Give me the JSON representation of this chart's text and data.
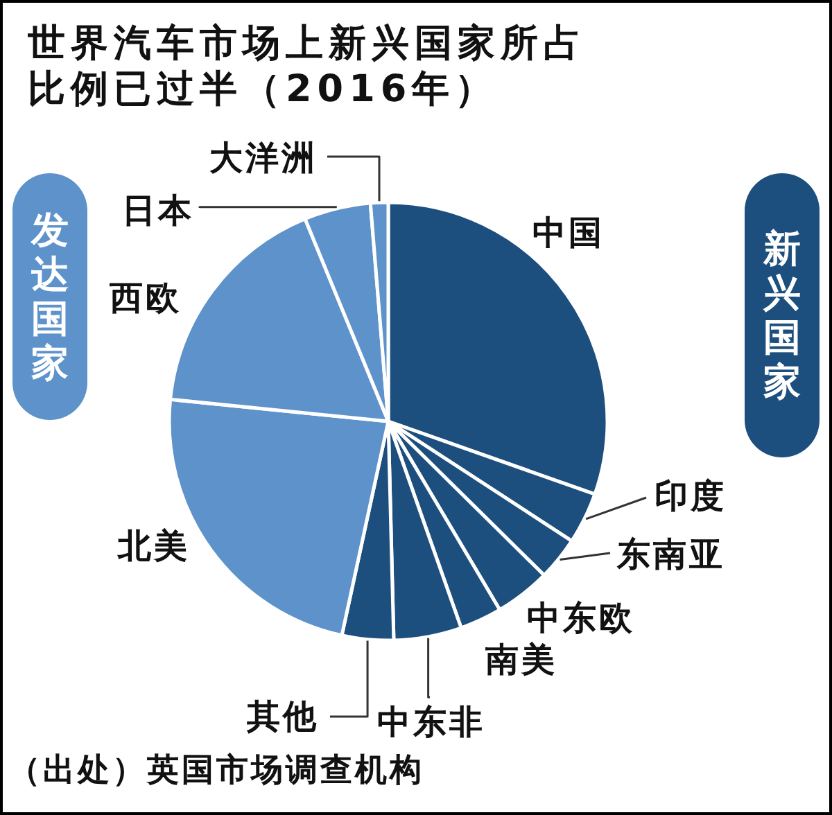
{
  "chart_data": {
    "type": "pie",
    "title": "世界汽车市场上新兴国家所占比例已过半（2016年）",
    "categories": [
      "中国",
      "印度",
      "东南亚",
      "中东欧",
      "南美",
      "中东非",
      "其他",
      "北美",
      "西欧",
      "日本",
      "大洋洲"
    ],
    "values": [
      30.4,
      3.8,
      3.2,
      4.1,
      3.1,
      5.0,
      3.8,
      23.2,
      17.2,
      4.9,
      1.3
    ],
    "colors": [
      "#1d4f7e",
      "#1d4f7e",
      "#1d4f7e",
      "#1d4f7e",
      "#1d4f7e",
      "#1d4f7e",
      "#1d4f7e",
      "#5d92ca",
      "#5d92ca",
      "#5d92ca",
      "#5d92ca"
    ],
    "annotations": [
      "发达国家",
      "新兴国家",
      "（出处）英国市场调查机构"
    ]
  }
}
